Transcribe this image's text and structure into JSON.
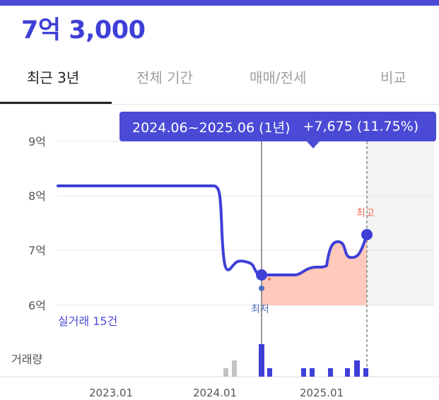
{
  "header": {
    "price": "7억 3,000"
  },
  "tabs": [
    {
      "label": "최근 3년",
      "active": true
    },
    {
      "label": "전체 기간",
      "active": false
    },
    {
      "label": "매매/전세",
      "active": false
    },
    {
      "label": "비교",
      "active": false
    }
  ],
  "tooltip": {
    "period": "2024.06~2025.06 (1년)",
    "change": "+7,675 (11.75%)"
  },
  "chart": {
    "y_labels": [
      "9억",
      "8억",
      "7억",
      "6억"
    ],
    "x_labels": [
      "2023.01",
      "2024.01",
      "2025.01"
    ],
    "max_label": "최고",
    "min_label": "최저",
    "trade_count": "실거래 15건",
    "volume_label": "거래량"
  },
  "colors": {
    "accent": "#4b4ad6",
    "max": "#ee6f57",
    "min": "#4a6fbf",
    "area": "#ffc9bb"
  }
}
